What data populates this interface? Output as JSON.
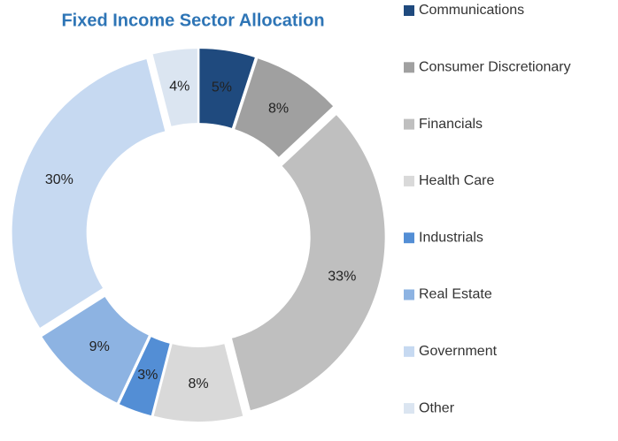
{
  "chart_data": {
    "type": "donut",
    "title": "Fixed Income Sector Allocation",
    "categories": [
      "Communications",
      "Consumer Discretionary",
      "Financials",
      "Health Care",
      "Industrials",
      "Real Estate",
      "Government",
      "Other"
    ],
    "values": [
      5,
      8,
      33,
      8,
      3,
      9,
      30,
      4
    ],
    "value_labels": [
      "5%",
      "8%",
      "33%",
      "8%",
      "3%",
      "9%",
      "30%",
      "4%"
    ],
    "colors": [
      "#1f4a7e",
      "#a0a0a0",
      "#bfbfbf",
      "#d9d9d9",
      "#538ed5",
      "#8db3e2",
      "#c6d9f1",
      "#dbe5f1"
    ],
    "legend": "right"
  }
}
